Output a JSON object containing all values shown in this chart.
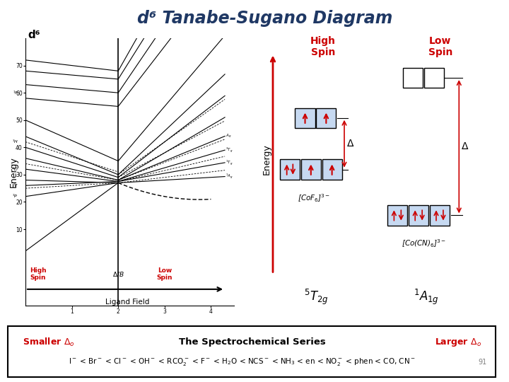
{
  "title": "d⁶ Tanabe-Sugano Diagram",
  "title_fontsize": 18,
  "background_color": "#ffffff",
  "d6_label": "d⁶",
  "high_spin_label": "High\nSpin",
  "low_spin_label": "Low\nSpin",
  "energy_label": "Energy",
  "ligand_field_label": "Ligand Field",
  "spectrochemical_title": "The Spectrochemical Series",
  "smaller_delta": "Smaller Δₒ",
  "larger_delta": "Larger Δₒ",
  "page_number": "91",
  "coF6_label": "[CoF₆]³⁻",
  "coCN6_label": "[Co(CN)₆]³⁻",
  "dark_red": "#cc0000",
  "blue_fill": "#c6d9f1",
  "dark_blue_title": "#1f3864"
}
